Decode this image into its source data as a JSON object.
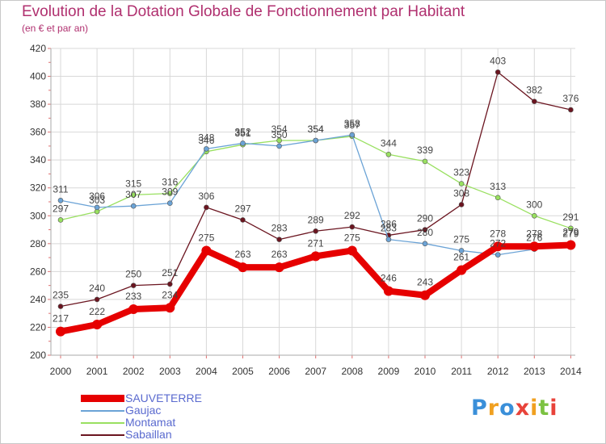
{
  "title": "Evolution de la Dotation Globale de Fonctionnement par Habitant",
  "subtitle": "(en € et par an)",
  "logo_text": "Proxiti",
  "colors": {
    "sauveterre": "#e60000",
    "gaujac": "#6ba3d6",
    "montamat": "#99e060",
    "sabaillan": "#6b1520",
    "grid": "#d8d8d8",
    "axis_text": "#333333",
    "title": "#b0306f",
    "legend_text": "#5a6acf"
  },
  "chart_data": {
    "type": "line",
    "title": "Evolution de la Dotation Globale de Fonctionnement par Habitant",
    "subtitle": "(en € et par an)",
    "xlabel": "",
    "ylabel": "",
    "ylim": [
      200,
      420
    ],
    "yticks": [
      200,
      220,
      240,
      260,
      280,
      300,
      320,
      340,
      360,
      380,
      400,
      420
    ],
    "grid": true,
    "legend_position": "bottom-left",
    "x": [
      2000,
      2001,
      2002,
      2003,
      2004,
      2005,
      2006,
      2007,
      2008,
      2009,
      2010,
      2011,
      2012,
      2013,
      2014
    ],
    "series": [
      {
        "key": "sabaillan",
        "name": "Sabaillan",
        "values": [
          235,
          240,
          250,
          251,
          306,
          297,
          283,
          289,
          292,
          286,
          290,
          308,
          403,
          382,
          376
        ]
      },
      {
        "key": "montamat",
        "name": "Montamat",
        "values": [
          297,
          303,
          315,
          316,
          346,
          351,
          354,
          354,
          357,
          344,
          339,
          323,
          313,
          300,
          291
        ]
      },
      {
        "key": "gaujac",
        "name": "Gaujac",
        "values": [
          311,
          306,
          307,
          309,
          348,
          352,
          350,
          354,
          358,
          283,
          280,
          275,
          272,
          276,
          279
        ]
      },
      {
        "key": "sauveterre",
        "name": "SAUVETERRE",
        "values": [
          217,
          222,
          233,
          234,
          275,
          263,
          263,
          271,
          275,
          246,
          243,
          261,
          278,
          278,
          279
        ]
      }
    ],
    "legend": [
      "SAUVETERRE",
      "Gaujac",
      "Montamat",
      "Sabaillan"
    ]
  }
}
